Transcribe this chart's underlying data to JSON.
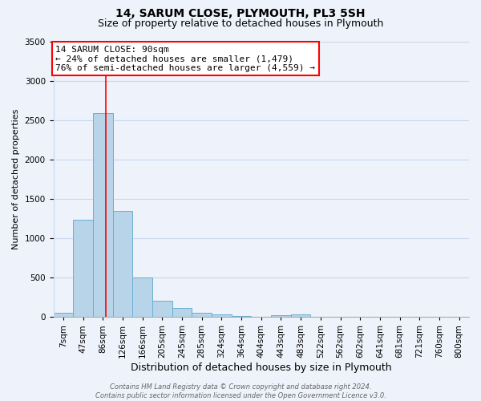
{
  "title": "14, SARUM CLOSE, PLYMOUTH, PL3 5SH",
  "subtitle": "Size of property relative to detached houses in Plymouth",
  "xlabel": "Distribution of detached houses by size in Plymouth",
  "ylabel": "Number of detached properties",
  "bin_labels": [
    "7sqm",
    "47sqm",
    "86sqm",
    "126sqm",
    "166sqm",
    "205sqm",
    "245sqm",
    "285sqm",
    "324sqm",
    "364sqm",
    "404sqm",
    "443sqm",
    "483sqm",
    "522sqm",
    "562sqm",
    "602sqm",
    "641sqm",
    "681sqm",
    "721sqm",
    "760sqm",
    "800sqm"
  ],
  "counts": [
    50,
    1230,
    2590,
    1350,
    500,
    205,
    110,
    50,
    30,
    10,
    5,
    20,
    30,
    5,
    2,
    2,
    2,
    2,
    2,
    2,
    0
  ],
  "bar_color": "#b8d4e8",
  "bar_edge_color": "#6aafd4",
  "vline_bin": 2,
  "vline_color": "red",
  "annotation_title": "14 SARUM CLOSE: 90sqm",
  "annotation_line1": "← 24% of detached houses are smaller (1,479)",
  "annotation_line2": "76% of semi-detached houses are larger (4,559) →",
  "annotation_box_color": "white",
  "annotation_box_edge_color": "red",
  "ylim": [
    0,
    3500
  ],
  "yticks": [
    0,
    500,
    1000,
    1500,
    2000,
    2500,
    3000,
    3500
  ],
  "footer1": "Contains HM Land Registry data © Crown copyright and database right 2024.",
  "footer2": "Contains public sector information licensed under the Open Government Licence v3.0.",
  "bg_color": "#eef2fa",
  "grid_color": "#c8d8ee",
  "title_fontsize": 10,
  "subtitle_fontsize": 9,
  "ylabel_fontsize": 8,
  "xlabel_fontsize": 9,
  "tick_fontsize": 7.5,
  "annotation_fontsize": 8,
  "footer_fontsize": 6
}
